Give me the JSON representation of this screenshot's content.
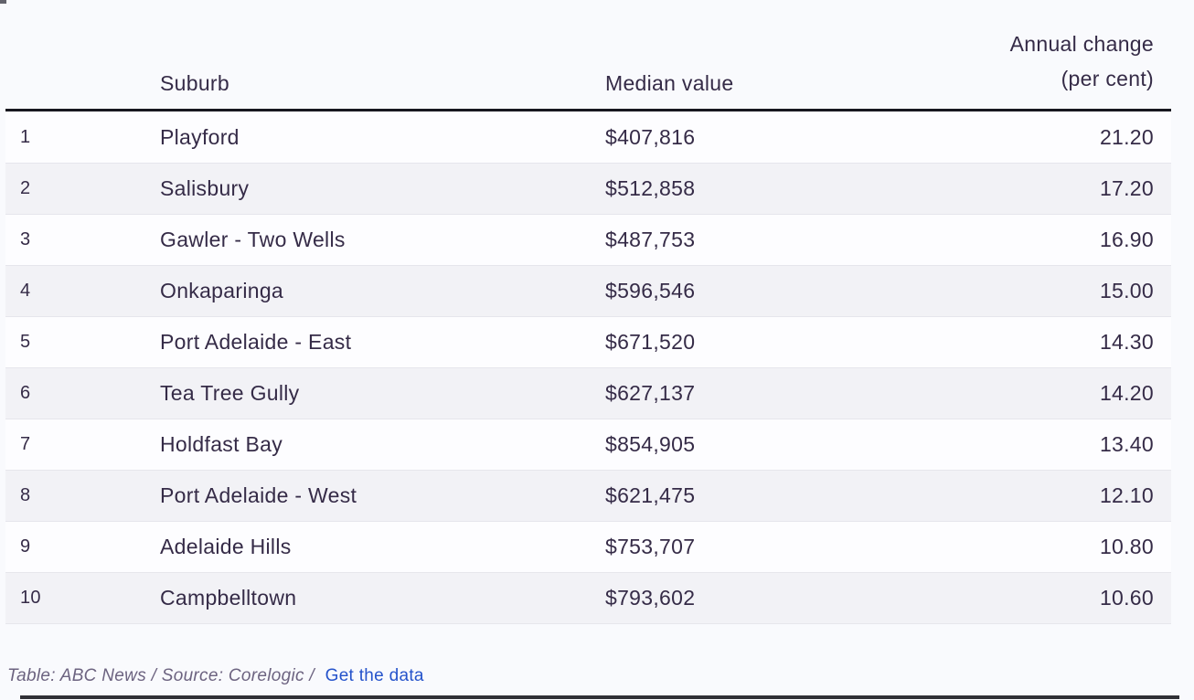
{
  "chart_data": {
    "type": "table",
    "headers": {
      "rank": "",
      "suburb": "Suburb",
      "median": "Median value",
      "annual_line1": "Annual change",
      "annual_line2": "(per cent)"
    },
    "rows": [
      {
        "rank": "1",
        "suburb": "Playford",
        "median": "$407,816",
        "annual": "21.20"
      },
      {
        "rank": "2",
        "suburb": "Salisbury",
        "median": "$512,858",
        "annual": "17.20"
      },
      {
        "rank": "3",
        "suburb": "Gawler - Two Wells",
        "median": "$487,753",
        "annual": "16.90"
      },
      {
        "rank": "4",
        "suburb": "Onkaparinga",
        "median": "$596,546",
        "annual": "15.00"
      },
      {
        "rank": "5",
        "suburb": "Port Adelaide - East",
        "median": "$671,520",
        "annual": "14.30"
      },
      {
        "rank": "6",
        "suburb": "Tea Tree Gully",
        "median": "$627,137",
        "annual": "14.20"
      },
      {
        "rank": "7",
        "suburb": "Holdfast Bay",
        "median": "$854,905",
        "annual": "13.40"
      },
      {
        "rank": "8",
        "suburb": "Port Adelaide - West",
        "median": "$621,475",
        "annual": "12.10"
      },
      {
        "rank": "9",
        "suburb": "Adelaide Hills",
        "median": "$753,707",
        "annual": "10.80"
      },
      {
        "rank": "10",
        "suburb": "Campbelltown",
        "median": "$793,602",
        "annual": "10.60"
      }
    ]
  },
  "footer": {
    "credit": "Table: ABC News / Source: Corelogic /",
    "link_label": "Get the data"
  },
  "colors": {
    "text": "#352b47",
    "link": "#2553cb",
    "stripe": "#f2f2f6",
    "header_rule": "#17171f",
    "row_separator": "#e6e6ec",
    "bottom_bar": "#303036",
    "page_background": "#f9fafd"
  }
}
